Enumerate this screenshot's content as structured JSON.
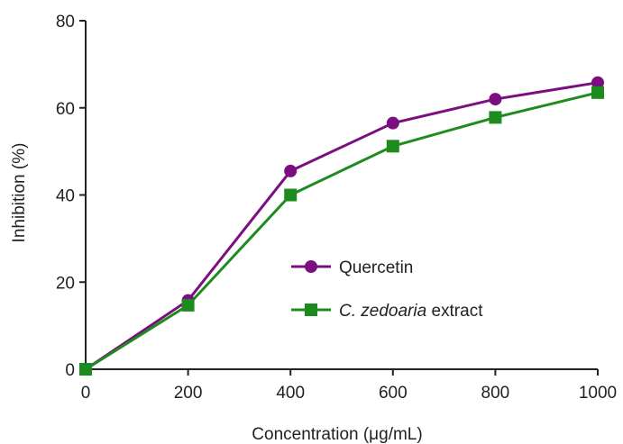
{
  "chart_data": {
    "type": "line",
    "title": "",
    "xlabel": "Concentration (μg/mL)",
    "ylabel": "Inhibition (%)",
    "x": [
      0,
      200,
      400,
      600,
      800,
      1000
    ],
    "xlim": [
      0,
      1000
    ],
    "ylim": [
      0,
      80
    ],
    "xticks": [
      "0",
      "200",
      "400",
      "600",
      "800",
      "1000"
    ],
    "yticks": [
      "0",
      "20",
      "40",
      "60",
      "80"
    ],
    "grid": false,
    "legend_position": "center-right",
    "series": [
      {
        "name": "Quercetin",
        "values": [
          0,
          15.8,
          45.5,
          56.5,
          62.0,
          65.8
        ],
        "color": "#7b0f7f",
        "marker": "circle"
      },
      {
        "name_italic": "C. zedoaria",
        "name_rest": " extract",
        "values": [
          0,
          14.7,
          40.0,
          51.2,
          57.8,
          63.5
        ],
        "color": "#1e8b1e",
        "marker": "square"
      }
    ]
  }
}
